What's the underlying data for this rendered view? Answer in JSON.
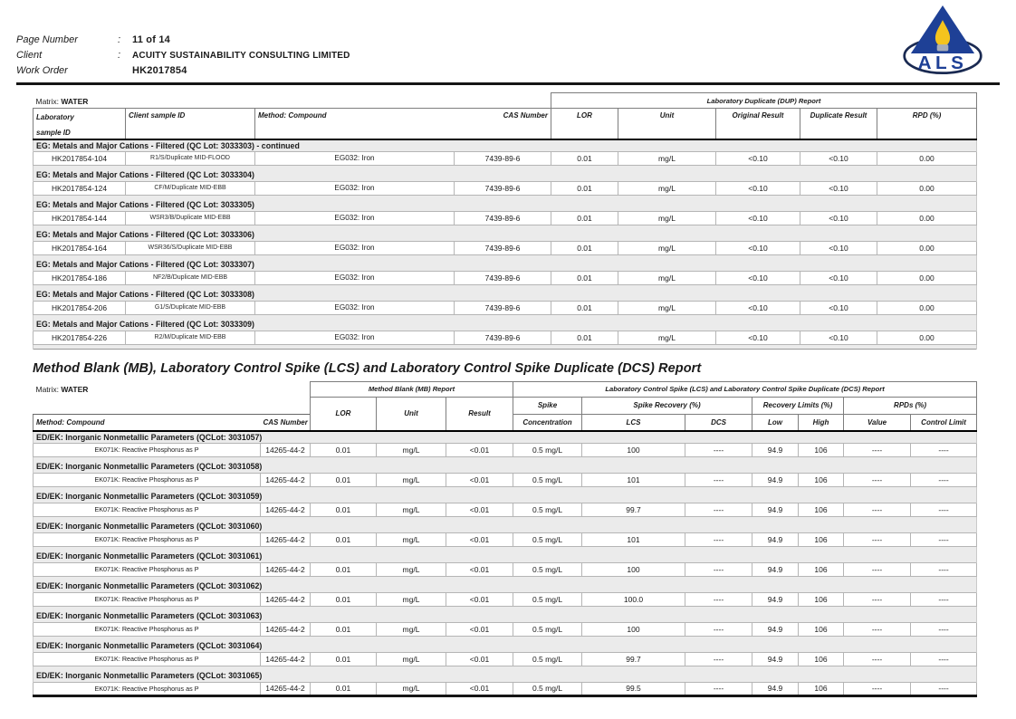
{
  "page": {
    "meta": [
      {
        "label": "Page Number",
        "colon": ":",
        "value": "11 of 14"
      },
      {
        "label": "Client",
        "colon": ":",
        "value": "ACUITY SUSTAINABILITY CONSULTING LIMITED"
      },
      {
        "label": "Work Order",
        "colon": "",
        "value": "HK2017854"
      }
    ],
    "logo": {
      "text": "ALS",
      "navy": "#1e4096",
      "flame": "#f5c41d",
      "candle": "#a7adb8",
      "ring": "#1a2a52"
    }
  },
  "dup_report": {
    "matrix_label": "Matrix:",
    "matrix_value": "WATER",
    "group_header": "Laboratory Duplicate (DUP) Report",
    "columns": {
      "lab_line1": "Laboratory",
      "lab_line2": "sample ID",
      "client": "Client sample ID",
      "method": "Method: Compound",
      "cas": "CAS Number",
      "lor": "LOR",
      "unit": "Unit",
      "original": "Original Result",
      "duplicate": "Duplicate Result",
      "rpd": "RPD (%)"
    },
    "sections": [
      {
        "title": "EG: Metals and Major Cations - Filtered  (QC Lot: 3033303)  - continued",
        "rows": [
          {
            "lab_id": "HK2017854-104",
            "client_id": "R1/S/Duplicate MID-FLOOD",
            "method": "EG032: Iron",
            "cas": "7439-89-6",
            "lor": "0.01",
            "unit": "mg/L",
            "original": "<0.10",
            "duplicate": "<0.10",
            "rpd": "0.00"
          }
        ]
      },
      {
        "title": "EG: Metals and Major Cations - Filtered  (QC Lot: 3033304)",
        "rows": [
          {
            "lab_id": "HK2017854-124",
            "client_id": "CF/M/Duplicate MID-EBB",
            "method": "EG032: Iron",
            "cas": "7439-89-6",
            "lor": "0.01",
            "unit": "mg/L",
            "original": "<0.10",
            "duplicate": "<0.10",
            "rpd": "0.00"
          }
        ]
      },
      {
        "title": "EG: Metals and Major Cations - Filtered  (QC Lot: 3033305)",
        "rows": [
          {
            "lab_id": "HK2017854-144",
            "client_id": "WSR3/B/Duplicate MID-EBB",
            "method": "EG032: Iron",
            "cas": "7439-89-6",
            "lor": "0.01",
            "unit": "mg/L",
            "original": "<0.10",
            "duplicate": "<0.10",
            "rpd": "0.00"
          }
        ]
      },
      {
        "title": "EG: Metals and Major Cations - Filtered  (QC Lot: 3033306)",
        "rows": [
          {
            "lab_id": "HK2017854-164",
            "client_id": "WSR36/S/Duplicate MID-EBB",
            "method": "EG032: Iron",
            "cas": "7439-89-6",
            "lor": "0.01",
            "unit": "mg/L",
            "original": "<0.10",
            "duplicate": "<0.10",
            "rpd": "0.00"
          }
        ]
      },
      {
        "title": "EG: Metals and Major Cations - Filtered  (QC Lot: 3033307)",
        "rows": [
          {
            "lab_id": "HK2017854-186",
            "client_id": "NF2/B/Duplicate MID-EBB",
            "method": "EG032: Iron",
            "cas": "7439-89-6",
            "lor": "0.01",
            "unit": "mg/L",
            "original": "<0.10",
            "duplicate": "<0.10",
            "rpd": "0.00"
          }
        ]
      },
      {
        "title": "EG: Metals and Major Cations - Filtered  (QC Lot: 3033308)",
        "rows": [
          {
            "lab_id": "HK2017854-206",
            "client_id": "G1/S/Duplicate MID-EBB",
            "method": "EG032: Iron",
            "cas": "7439-89-6",
            "lor": "0.01",
            "unit": "mg/L",
            "original": "<0.10",
            "duplicate": "<0.10",
            "rpd": "0.00"
          }
        ]
      },
      {
        "title": "EG: Metals and Major Cations - Filtered  (QC Lot: 3033309)",
        "rows": [
          {
            "lab_id": "HK2017854-226",
            "client_id": "R2/M/Duplicate MID-EBB",
            "method": "EG032: Iron",
            "cas": "7439-89-6",
            "lor": "0.01",
            "unit": "mg/L",
            "original": "<0.10",
            "duplicate": "<0.10",
            "rpd": "0.00"
          }
        ]
      }
    ]
  },
  "mb_report": {
    "title": "Method Blank (MB), Laboratory Control Spike (LCS) and Laboratory Control Spike Duplicate (DCS) Report",
    "matrix_label": "Matrix:",
    "matrix_value": "WATER",
    "group_headers": {
      "mb": "Method Blank (MB) Report",
      "lcs_dcs": "Laboratory Control Spike (LCS) and Laboratory Control Spike Duplicate (DCS) Report",
      "spike_line1": "Spike",
      "spike_line2": "Concentration",
      "spike_recovery": "Spike Recovery (%)",
      "recovery_limits": "Recovery Limits (%)",
      "rpds": "RPDs (%)"
    },
    "columns": {
      "method": "Method: Compound",
      "cas": "CAS Number",
      "lor": "LOR",
      "unit": "Unit",
      "result": "Result",
      "lcs": "LCS",
      "dcs": "DCS",
      "low": "Low",
      "high": "High",
      "value": "Value",
      "control_limit": "Control Limit"
    },
    "sections": [
      {
        "title": "ED/EK: Inorganic Nonmetallic Parameters  (QCLot: 3031057)",
        "rows": [
          {
            "compound": "EK071K: Reactive Phosphorus as P",
            "cas": "14265-44-2",
            "lor": "0.01",
            "unit": "mg/L",
            "result": "<0.01",
            "spike_concentration": "0.5 mg/L",
            "lcs": "100",
            "dcs": "----",
            "low": "94.9",
            "high": "106",
            "value": "----",
            "control_limit": "----"
          }
        ]
      },
      {
        "title": "ED/EK: Inorganic Nonmetallic Parameters  (QCLot: 3031058)",
        "rows": [
          {
            "compound": "EK071K: Reactive Phosphorus as P",
            "cas": "14265-44-2",
            "lor": "0.01",
            "unit": "mg/L",
            "result": "<0.01",
            "spike_concentration": "0.5 mg/L",
            "lcs": "101",
            "dcs": "----",
            "low": "94.9",
            "high": "106",
            "value": "----",
            "control_limit": "----"
          }
        ]
      },
      {
        "title": "ED/EK: Inorganic Nonmetallic Parameters  (QCLot: 3031059)",
        "rows": [
          {
            "compound": "EK071K: Reactive Phosphorus as P",
            "cas": "14265-44-2",
            "lor": "0.01",
            "unit": "mg/L",
            "result": "<0.01",
            "spike_concentration": "0.5 mg/L",
            "lcs": "99.7",
            "dcs": "----",
            "low": "94.9",
            "high": "106",
            "value": "----",
            "control_limit": "----"
          }
        ]
      },
      {
        "title": "ED/EK: Inorganic Nonmetallic Parameters  (QCLot: 3031060)",
        "rows": [
          {
            "compound": "EK071K: Reactive Phosphorus as P",
            "cas": "14265-44-2",
            "lor": "0.01",
            "unit": "mg/L",
            "result": "<0.01",
            "spike_concentration": "0.5 mg/L",
            "lcs": "101",
            "dcs": "----",
            "low": "94.9",
            "high": "106",
            "value": "----",
            "control_limit": "----"
          }
        ]
      },
      {
        "title": "ED/EK: Inorganic Nonmetallic Parameters  (QCLot: 3031061)",
        "rows": [
          {
            "compound": "EK071K: Reactive Phosphorus as P",
            "cas": "14265-44-2",
            "lor": "0.01",
            "unit": "mg/L",
            "result": "<0.01",
            "spike_concentration": "0.5 mg/L",
            "lcs": "100",
            "dcs": "----",
            "low": "94.9",
            "high": "106",
            "value": "----",
            "control_limit": "----"
          }
        ]
      },
      {
        "title": "ED/EK: Inorganic Nonmetallic Parameters  (QCLot: 3031062)",
        "rows": [
          {
            "compound": "EK071K: Reactive Phosphorus as P",
            "cas": "14265-44-2",
            "lor": "0.01",
            "unit": "mg/L",
            "result": "<0.01",
            "spike_concentration": "0.5 mg/L",
            "lcs": "100.0",
            "dcs": "----",
            "low": "94.9",
            "high": "106",
            "value": "----",
            "control_limit": "----"
          }
        ]
      },
      {
        "title": "ED/EK: Inorganic Nonmetallic Parameters  (QCLot: 3031063)",
        "rows": [
          {
            "compound": "EK071K: Reactive Phosphorus as P",
            "cas": "14265-44-2",
            "lor": "0.01",
            "unit": "mg/L",
            "result": "<0.01",
            "spike_concentration": "0.5 mg/L",
            "lcs": "100",
            "dcs": "----",
            "low": "94.9",
            "high": "106",
            "value": "----",
            "control_limit": "----"
          }
        ]
      },
      {
        "title": "ED/EK: Inorganic Nonmetallic Parameters  (QCLot: 3031064)",
        "rows": [
          {
            "compound": "EK071K: Reactive Phosphorus as P",
            "cas": "14265-44-2",
            "lor": "0.01",
            "unit": "mg/L",
            "result": "<0.01",
            "spike_concentration": "0.5 mg/L",
            "lcs": "99.7",
            "dcs": "----",
            "low": "94.9",
            "high": "106",
            "value": "----",
            "control_limit": "----"
          }
        ]
      },
      {
        "title": "ED/EK: Inorganic Nonmetallic Parameters  (QCLot: 3031065)",
        "rows": [
          {
            "compound": "EK071K: Reactive Phosphorus as P",
            "cas": "14265-44-2",
            "lor": "0.01",
            "unit": "mg/L",
            "result": "<0.01",
            "spike_concentration": "0.5 mg/L",
            "lcs": "99.5",
            "dcs": "----",
            "low": "94.9",
            "high": "106",
            "value": "----",
            "control_limit": "----"
          }
        ]
      }
    ]
  }
}
